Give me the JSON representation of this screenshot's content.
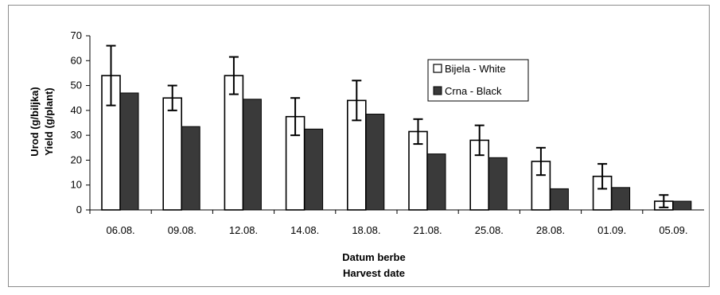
{
  "chart_data": {
    "type": "bar",
    "categories": [
      "06.08.",
      "09.08.",
      "12.08.",
      "14.08.",
      "18.08.",
      "21.08.",
      "25.08.",
      "28.08.",
      "01.09.",
      "05.09."
    ],
    "series": [
      {
        "name": "Bijela - White",
        "values": [
          54,
          45,
          54,
          37.5,
          44,
          31.5,
          28,
          19.5,
          13.5,
          3.5
        ],
        "error": [
          12,
          5,
          7.5,
          7.5,
          8,
          5,
          6,
          5.5,
          5,
          2.5
        ],
        "color": "#ffffff"
      },
      {
        "name": "Crna - Black",
        "values": [
          47,
          33.5,
          44.5,
          32.5,
          38.5,
          22.5,
          21,
          8.5,
          9,
          3.5
        ],
        "color": "#3a3a3a"
      }
    ],
    "xlabel": [
      "Datum berbe",
      "Harvest date"
    ],
    "ylabel": [
      "Urod (g/biljka)",
      "Yield (g/plant)"
    ],
    "ylim": [
      0,
      70
    ],
    "yticks": [
      "0",
      "10",
      "20",
      "30",
      "40",
      "50",
      "60",
      "70"
    ],
    "grid": false,
    "legend": "top-right"
  }
}
